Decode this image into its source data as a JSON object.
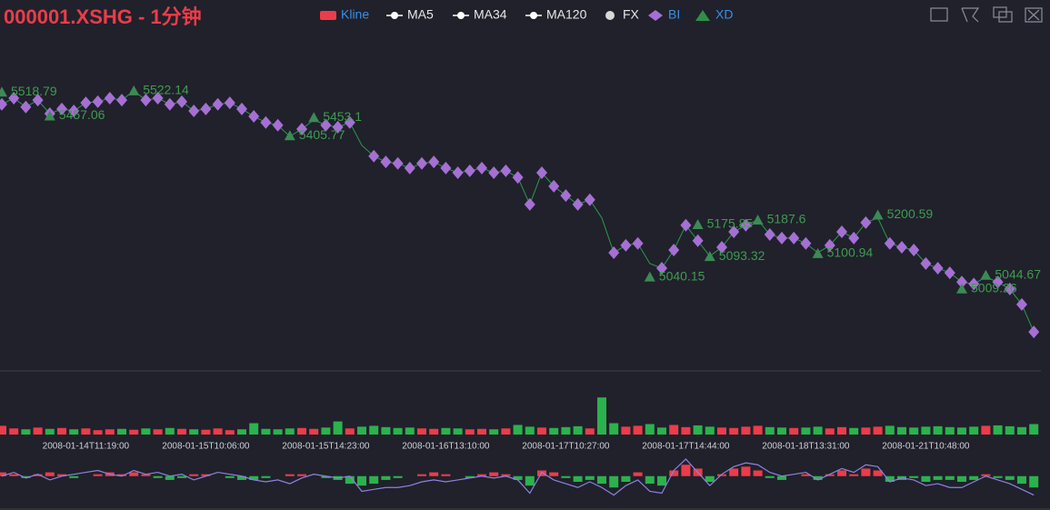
{
  "chart_data": [
    {
      "type": "line",
      "title": "000001.XSHG - 1分钟",
      "legend": [
        {
          "name": "Kline",
          "icon": "rect",
          "color": "#ec3c4a",
          "text_color": "#3a8ee6"
        },
        {
          "name": "MA5",
          "icon": "line-dot",
          "color": "#ffffff",
          "text_color": "#e8e8e8"
        },
        {
          "name": "MA34",
          "icon": "line-dot",
          "color": "#ffffff",
          "text_color": "#e8e8e8"
        },
        {
          "name": "MA120",
          "icon": "line-dot",
          "color": "#ffffff",
          "text_color": "#e8e8e8"
        },
        {
          "name": "FX",
          "icon": "circle",
          "color": "#d8d8d8",
          "text_color": "#e8e8e8"
        },
        {
          "name": "BI",
          "icon": "diamond",
          "color": "#a66fd4",
          "text_color": "#3a8ee6"
        },
        {
          "name": "XD",
          "icon": "triangle",
          "color": "#2f8f46",
          "text_color": "#3a8ee6"
        }
      ],
      "categories": [
        null,
        null,
        null,
        null,
        null,
        null,
        null,
        "2008-01-14T11:19:00",
        null,
        null,
        null,
        null,
        null,
        null,
        null,
        null,
        null,
        "2008-01-15T10:06:00",
        null,
        null,
        null,
        null,
        null,
        null,
        null,
        null,
        null,
        "2008-01-15T14:23:00",
        null,
        null,
        null,
        null,
        null,
        null,
        null,
        null,
        null,
        "2008-01-16T13:10:00",
        null,
        null,
        null,
        null,
        null,
        null,
        null,
        null,
        null,
        "2008-01-17T10:27:00",
        null,
        null,
        null,
        null,
        null,
        null,
        null,
        null,
        null,
        "2008-01-17T14:44:00",
        null,
        null,
        null,
        null,
        null,
        null,
        null,
        null,
        null,
        "2008-01-18T13:31:00",
        null,
        null,
        null,
        null,
        null,
        null,
        null,
        null,
        null,
        "2008-01-21T10:48:00",
        null,
        null,
        null,
        null,
        null,
        null,
        null,
        null,
        null
      ],
      "ylim": [
        4797,
        5663
      ],
      "series": [
        {
          "color": "#2b9a4e",
          "marker": "line",
          "values": [
            5487,
            5503,
            5480,
            5498,
            5463,
            5475,
            5470,
            5491,
            5494,
            5503,
            5498,
            5522,
            5498,
            5503,
            5487,
            5494,
            5470,
            5475,
            5487,
            5491,
            5475,
            5456,
            5440,
            5433,
            5404,
            5423,
            5447,
            5433,
            5428,
            5440,
            5381,
            5353,
            5338,
            5334,
            5322,
            5334,
            5338,
            5322,
            5310,
            5315,
            5322,
            5310,
            5315,
            5298,
            5228,
            5310,
            5275,
            5251,
            5228,
            5240,
            5193,
            5103,
            5122,
            5127,
            5075,
            5063,
            5110,
            5174,
            5134,
            5094,
            5117,
            5157,
            5174,
            5188,
            5150,
            5141,
            5141,
            5127,
            5103,
            5122,
            5157,
            5141,
            5181,
            5193,
            5127,
            5117,
            5110,
            5075,
            5063,
            5051,
            5027,
            5022,
            5040,
            5027,
            5009,
            4969,
            4898
          ]
        },
        {
          "color": "#a66fd4",
          "marker": "diamond",
          "values": [
            5487,
            5503,
            5480,
            5498,
            5463,
            5475,
            5470,
            5491,
            5494,
            5503,
            5498,
            null,
            5498,
            5503,
            5487,
            5494,
            5470,
            5475,
            5487,
            5491,
            5475,
            5456,
            5440,
            5433,
            null,
            5423,
            null,
            5433,
            5428,
            5440,
            null,
            5353,
            5338,
            5334,
            5322,
            5334,
            5338,
            5322,
            5310,
            5315,
            5322,
            5310,
            5315,
            5298,
            5228,
            5310,
            5275,
            5251,
            5228,
            5240,
            null,
            5103,
            5122,
            5127,
            null,
            5063,
            5110,
            5174,
            5134,
            null,
            5117,
            5157,
            5174,
            null,
            5150,
            5141,
            5141,
            5127,
            null,
            5122,
            5157,
            5141,
            5181,
            null,
            5127,
            5117,
            5110,
            5075,
            5063,
            5051,
            5027,
            5022,
            null,
            5027,
            5009,
            4969,
            4898
          ]
        },
        {
          "color": "#3b8a55",
          "marker": "triangle",
          "values": [
            5518.79,
            null,
            null,
            null,
            5457.06,
            null,
            null,
            null,
            null,
            null,
            null,
            5522.14,
            null,
            null,
            null,
            null,
            null,
            null,
            null,
            null,
            null,
            null,
            null,
            null,
            5405.77,
            null,
            5453.1,
            null,
            null,
            null,
            null,
            null,
            null,
            null,
            null,
            null,
            null,
            null,
            null,
            null,
            null,
            null,
            null,
            null,
            null,
            null,
            null,
            null,
            null,
            null,
            null,
            null,
            null,
            null,
            5040.15,
            null,
            null,
            null,
            5175.85,
            5093.32,
            null,
            null,
            null,
            5187.6,
            null,
            null,
            null,
            null,
            5100.94,
            null,
            null,
            null,
            null,
            5200.59,
            null,
            null,
            null,
            null,
            null,
            null,
            5009.26,
            null,
            5044.67,
            null,
            null,
            null,
            null
          ]
        }
      ]
    },
    {
      "type": "bar",
      "ylim": [
        0,
        100
      ],
      "up_color": "#ec3c4a",
      "down_color": "#2bb24c",
      "values": [
        20,
        14,
        12,
        16,
        13,
        15,
        12,
        14,
        10,
        12,
        13,
        11,
        14,
        12,
        15,
        13,
        12,
        11,
        14,
        10,
        12,
        26,
        13,
        12,
        14,
        15,
        13,
        16,
        30,
        14,
        18,
        20,
        17,
        15,
        16,
        14,
        13,
        15,
        14,
        12,
        13,
        12,
        14,
        22,
        18,
        16,
        15,
        17,
        19,
        14,
        85,
        26,
        18,
        20,
        24,
        16,
        22,
        17,
        21,
        18,
        16,
        15,
        18,
        20,
        17,
        16,
        15,
        16,
        18,
        14,
        17,
        15,
        16,
        18,
        20,
        17,
        16,
        18,
        19,
        17,
        16,
        18,
        20,
        21,
        19,
        17,
        24
      ]
    },
    {
      "type": "bar",
      "ylim": [
        -15,
        9
      ],
      "up_color": "#ec3c4a",
      "down_color": "#2bb24c",
      "values": [
        2,
        1,
        -1,
        1,
        2,
        1,
        -1,
        0,
        1,
        2,
        1,
        2,
        1,
        -1,
        -2,
        -1,
        1,
        1,
        0,
        -1,
        -2,
        -2,
        -1,
        0,
        1,
        1,
        0,
        -1,
        -2,
        -4,
        -5,
        -4,
        -2,
        -1,
        0,
        1,
        2,
        1,
        0,
        -1,
        1,
        2,
        1,
        -2,
        -5,
        3,
        2,
        -1,
        -3,
        -2,
        -4,
        -6,
        -3,
        2,
        -4,
        -5,
        3,
        6,
        4,
        -3,
        1,
        4,
        5,
        3,
        -1,
        -2,
        0,
        1,
        -2,
        1,
        3,
        1,
        4,
        3,
        -3,
        -2,
        -1,
        -3,
        -2,
        -2,
        -3,
        -2,
        1,
        -1,
        -2,
        -4,
        -6
      ],
      "series": [
        {
          "color": "#8c83e0",
          "values": [
            0,
            2,
            -1,
            1,
            -2,
            0,
            1,
            2,
            3,
            1,
            0,
            3,
            1,
            2,
            0,
            1,
            -2,
            0,
            2,
            1,
            0,
            -2,
            -3,
            -2,
            -4,
            -1,
            1,
            0,
            -1,
            0,
            -8,
            -7,
            -6,
            -6,
            -5,
            -3,
            -2,
            -3,
            -2,
            -1,
            0,
            -1,
            0,
            -2,
            -9,
            2,
            -2,
            -4,
            -6,
            -3,
            -6,
            -10,
            -5,
            -2,
            -8,
            -9,
            3,
            9,
            2,
            -5,
            1,
            5,
            7,
            6,
            2,
            0,
            1,
            2,
            -2,
            1,
            4,
            2,
            6,
            5,
            -3,
            -1,
            -2,
            -5,
            -4,
            -6,
            -6,
            -3,
            0,
            -2,
            -4,
            -7,
            -10
          ]
        }
      ]
    }
  ]
}
